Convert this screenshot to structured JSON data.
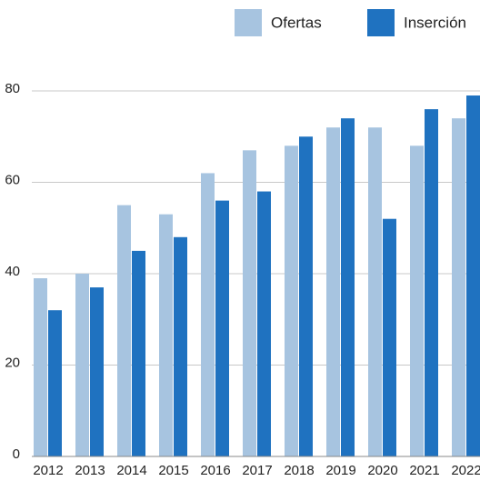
{
  "chart_data": {
    "type": "bar",
    "categories": [
      "2012",
      "2013",
      "2014",
      "2015",
      "2016",
      "2017",
      "2018",
      "2019",
      "2020",
      "2021",
      "2022"
    ],
    "series": [
      {
        "name": "Ofertas",
        "color": "#a7c4e0",
        "values": [
          39,
          40,
          55,
          53,
          62,
          67,
          68,
          72,
          72,
          68,
          74
        ]
      },
      {
        "name": "Inserción",
        "color": "#1f72c0",
        "values": [
          32,
          37,
          45,
          48,
          56,
          58,
          70,
          74,
          52,
          76,
          79
        ]
      }
    ],
    "ylim": [
      0,
      80
    ],
    "yticks": [
      0,
      20,
      40,
      60,
      80
    ],
    "grid": true,
    "legend": "top-right"
  }
}
